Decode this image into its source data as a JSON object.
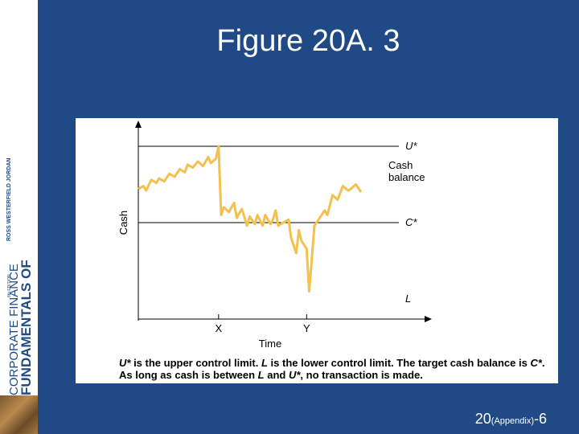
{
  "slide": {
    "title": "Figure 20A. 3",
    "page_main": "20",
    "page_small": "(Appendix)",
    "page_suffix": "-6"
  },
  "sidebar": {
    "line1": "FUNDAMENTALS OF",
    "line2": "CORPORATE FINANCE",
    "authors": "ROSS WESTERFIELD JORDAN",
    "edition": "8th EDITION"
  },
  "caption": {
    "p1_u": "U*",
    "p1_a": " is the upper control limit. ",
    "p1_l": "L",
    "p1_b": " is the lower control limit. The target cash balance is ",
    "p1_c": "C*",
    "p1_d": ". As long as cash is between ",
    "p1_l2": "L",
    "p1_e": " and ",
    "p1_u2": "U*",
    "p1_f": ", no transaction is made."
  },
  "colors": {
    "background": "#1f4a85",
    "series": "#f2c14e",
    "axis": "#000000"
  },
  "chart_data": {
    "type": "line",
    "xlabel": "Time",
    "ylabel": "Cash",
    "x_ticks": [
      "X",
      "Y"
    ],
    "reference_lines": [
      {
        "name": "U*",
        "y": 1.0
      },
      {
        "name": "C*",
        "y": 0.5
      },
      {
        "name": "L",
        "y": 0.0
      }
    ],
    "series": [
      {
        "name": "Cash balance",
        "x": [
          0,
          0.02,
          0.03,
          0.05,
          0.07,
          0.08,
          0.1,
          0.12,
          0.14,
          0.16,
          0.18,
          0.19,
          0.21,
          0.23,
          0.25,
          0.27,
          0.28,
          0.3,
          0.31,
          0.32,
          0.33,
          0.35,
          0.37,
          0.38,
          0.4,
          0.42,
          0.43,
          0.45,
          0.46,
          0.48,
          0.49,
          0.51,
          0.52,
          0.53,
          0.54,
          0.56,
          0.58,
          0.59,
          0.6,
          0.61,
          0.62,
          0.63,
          0.65,
          0.66,
          0.68,
          0.7,
          0.72,
          0.73,
          0.75,
          0.77,
          0.79,
          0.81,
          0.82,
          0.84,
          0.86
        ],
        "values": [
          0.72,
          0.74,
          0.71,
          0.78,
          0.76,
          0.79,
          0.77,
          0.82,
          0.8,
          0.85,
          0.83,
          0.88,
          0.86,
          0.9,
          0.87,
          0.93,
          0.89,
          0.92,
          1.0,
          0.55,
          0.6,
          0.57,
          0.63,
          0.53,
          0.59,
          0.48,
          0.54,
          0.49,
          0.55,
          0.48,
          0.55,
          0.49,
          0.52,
          0.58,
          0.48,
          0.5,
          0.52,
          0.4,
          0.35,
          0.3,
          0.45,
          0.38,
          0.33,
          0.05,
          0.48,
          0.53,
          0.58,
          0.55,
          0.68,
          0.65,
          0.74,
          0.71,
          0.72,
          0.75,
          0.7
        ]
      }
    ]
  }
}
